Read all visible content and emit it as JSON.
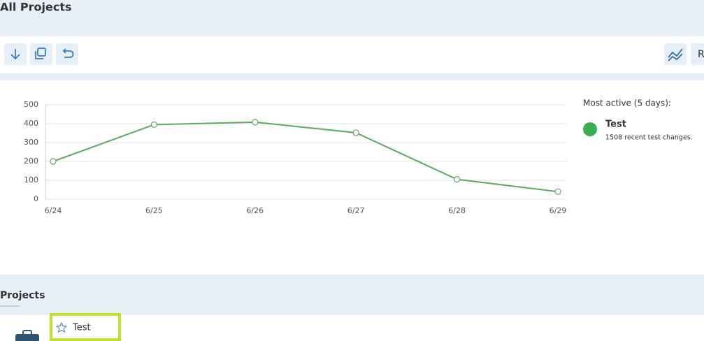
{
  "header": {
    "title": "All Projects"
  },
  "toolbar": {
    "right_button_label": "R"
  },
  "chart_data": {
    "type": "line",
    "categories": [
      "6/24",
      "6/25",
      "6/26",
      "6/27",
      "6/28",
      "6/29"
    ],
    "values": [
      200,
      395,
      408,
      352,
      105,
      40
    ],
    "color": "#5aaa5f",
    "ylim": [
      0,
      500
    ],
    "yticks": [
      0,
      100,
      200,
      300,
      400,
      500
    ],
    "grid": true
  },
  "sidebar": {
    "heading": "Most active (5 days):",
    "project_name": "Test",
    "summary": "1508 recent test changes."
  },
  "projects": {
    "title": "Projects",
    "items": [
      {
        "name": "Test"
      }
    ]
  }
}
